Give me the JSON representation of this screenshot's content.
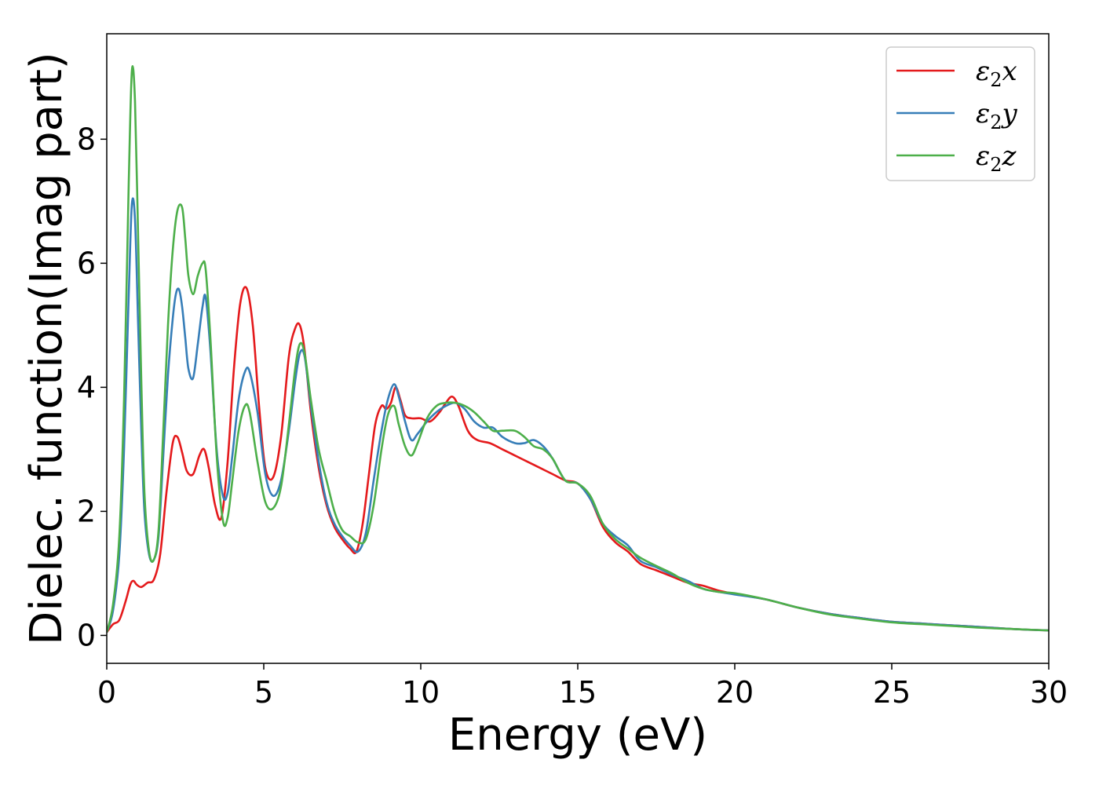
{
  "chart_data": {
    "type": "line",
    "title": "",
    "xlabel": "Energy (eV)",
    "ylabel": "Dielec. function(Imag part)",
    "xlim": [
      0,
      30
    ],
    "ylim": [
      -0.45,
      9.7
    ],
    "xticks": [
      0,
      5,
      10,
      15,
      20,
      25,
      30
    ],
    "yticks": [
      0,
      2,
      4,
      6,
      8
    ],
    "grid": false,
    "legend_position": "top-right",
    "series": [
      {
        "name": "ε2x",
        "legend_base": "ε",
        "legend_sub": "2",
        "legend_tail": "x",
        "color": "#e41a1c",
        "x": [
          0,
          0.2,
          0.4,
          0.6,
          0.75,
          0.85,
          0.95,
          1.1,
          1.3,
          1.5,
          1.7,
          1.9,
          2.1,
          2.25,
          2.4,
          2.55,
          2.75,
          2.95,
          3.1,
          3.25,
          3.45,
          3.65,
          3.85,
          4.05,
          4.25,
          4.45,
          4.65,
          4.85,
          5.05,
          5.3,
          5.55,
          5.8,
          6.0,
          6.15,
          6.3,
          6.5,
          6.75,
          7.0,
          7.25,
          7.5,
          7.75,
          7.95,
          8.15,
          8.35,
          8.55,
          8.75,
          8.9,
          9.05,
          9.2,
          9.35,
          9.5,
          9.7,
          10.0,
          10.3,
          10.6,
          10.8,
          11.0,
          11.2,
          11.5,
          11.8,
          12.2,
          12.6,
          13.0,
          13.4,
          13.8,
          14.2,
          14.6,
          15.0,
          15.4,
          15.8,
          16.2,
          16.6,
          17.0,
          17.5,
          18.0,
          18.5,
          19.0,
          19.5,
          20.0,
          21.0,
          22.0,
          23.0,
          24.0,
          25.0,
          26.0,
          27.0,
          28.0,
          29.0,
          30.0
        ],
        "y": [
          0.05,
          0.18,
          0.25,
          0.55,
          0.82,
          0.88,
          0.82,
          0.78,
          0.85,
          0.9,
          1.3,
          2.3,
          3.1,
          3.2,
          2.95,
          2.65,
          2.6,
          2.9,
          3.0,
          2.7,
          2.1,
          1.9,
          2.8,
          4.3,
          5.35,
          5.6,
          5.0,
          3.7,
          2.7,
          2.55,
          3.2,
          4.5,
          4.95,
          5.0,
          4.6,
          3.6,
          2.7,
          2.1,
          1.75,
          1.55,
          1.4,
          1.35,
          1.8,
          2.6,
          3.4,
          3.7,
          3.65,
          3.75,
          4.0,
          3.8,
          3.55,
          3.5,
          3.5,
          3.45,
          3.6,
          3.75,
          3.85,
          3.7,
          3.3,
          3.15,
          3.1,
          3.0,
          2.9,
          2.8,
          2.7,
          2.6,
          2.5,
          2.45,
          2.2,
          1.75,
          1.5,
          1.35,
          1.15,
          1.05,
          0.95,
          0.85,
          0.8,
          0.72,
          0.67,
          0.58,
          0.45,
          0.35,
          0.28,
          0.22,
          0.19,
          0.16,
          0.13,
          0.1,
          0.08
        ]
      },
      {
        "name": "ε2y",
        "legend_base": "ε",
        "legend_sub": "2",
        "legend_tail": "y",
        "color": "#377eb8",
        "x": [
          0,
          0.2,
          0.4,
          0.55,
          0.7,
          0.8,
          0.9,
          1.0,
          1.1,
          1.2,
          1.35,
          1.5,
          1.65,
          1.8,
          1.95,
          2.1,
          2.2,
          2.3,
          2.4,
          2.5,
          2.6,
          2.75,
          2.9,
          3.05,
          3.15,
          3.3,
          3.5,
          3.7,
          3.85,
          4.0,
          4.2,
          4.4,
          4.55,
          4.8,
          5.05,
          5.3,
          5.55,
          5.8,
          6.0,
          6.15,
          6.3,
          6.5,
          6.75,
          7.0,
          7.25,
          7.5,
          7.75,
          8.0,
          8.25,
          8.5,
          8.75,
          8.95,
          9.15,
          9.3,
          9.5,
          9.7,
          9.9,
          10.2,
          10.5,
          10.8,
          11.1,
          11.4,
          11.7,
          12.0,
          12.3,
          12.6,
          13.0,
          13.3,
          13.6,
          13.9,
          14.2,
          14.6,
          15.0,
          15.4,
          15.8,
          16.2,
          16.6,
          17.0,
          17.5,
          18.0,
          18.5,
          19.0,
          19.5,
          20.0,
          21.0,
          22.0,
          23.0,
          24.0,
          25.0,
          26.0,
          27.0,
          28.0,
          29.0,
          30.0
        ],
        "y": [
          0.05,
          0.4,
          1.3,
          3.0,
          5.5,
          6.95,
          6.7,
          5.0,
          3.3,
          2.0,
          1.3,
          1.22,
          1.6,
          2.9,
          4.2,
          5.1,
          5.5,
          5.58,
          5.3,
          4.8,
          4.3,
          4.15,
          4.7,
          5.3,
          5.45,
          4.6,
          3.0,
          2.25,
          2.3,
          2.9,
          3.8,
          4.25,
          4.25,
          3.6,
          2.6,
          2.25,
          2.5,
          3.3,
          4.1,
          4.55,
          4.5,
          3.7,
          2.8,
          2.15,
          1.8,
          1.6,
          1.45,
          1.35,
          1.65,
          2.5,
          3.3,
          3.8,
          4.05,
          3.85,
          3.45,
          3.15,
          3.25,
          3.45,
          3.6,
          3.7,
          3.75,
          3.65,
          3.45,
          3.35,
          3.35,
          3.2,
          3.1,
          3.1,
          3.15,
          3.05,
          2.85,
          2.5,
          2.45,
          2.2,
          1.8,
          1.6,
          1.45,
          1.2,
          1.1,
          0.98,
          0.88,
          0.75,
          0.7,
          0.66,
          0.58,
          0.45,
          0.35,
          0.28,
          0.22,
          0.19,
          0.16,
          0.13,
          0.1,
          0.08
        ]
      },
      {
        "name": "ε2z",
        "legend_base": "ε",
        "legend_sub": "2",
        "legend_tail": "z",
        "color": "#4daf4a",
        "x": [
          0,
          0.2,
          0.4,
          0.55,
          0.7,
          0.8,
          0.9,
          1.0,
          1.1,
          1.2,
          1.35,
          1.5,
          1.65,
          1.8,
          1.95,
          2.1,
          2.25,
          2.4,
          2.5,
          2.6,
          2.75,
          2.9,
          3.05,
          3.15,
          3.3,
          3.5,
          3.7,
          3.85,
          4.0,
          4.2,
          4.4,
          4.55,
          4.8,
          5.05,
          5.3,
          5.55,
          5.8,
          6.0,
          6.15,
          6.3,
          6.5,
          6.75,
          7.0,
          7.25,
          7.5,
          7.75,
          8.0,
          8.25,
          8.5,
          8.75,
          8.95,
          9.15,
          9.3,
          9.5,
          9.7,
          9.9,
          10.2,
          10.5,
          10.8,
          11.1,
          11.4,
          11.7,
          12.0,
          12.3,
          12.6,
          13.0,
          13.3,
          13.6,
          13.9,
          14.2,
          14.6,
          15.0,
          15.4,
          15.8,
          16.2,
          16.6,
          17.0,
          17.5,
          18.0,
          18.5,
          19.0,
          19.5,
          20.0,
          21.0,
          22.0,
          23.0,
          24.0,
          25.0,
          26.0,
          27.0,
          28.0,
          29.0,
          30.0
        ],
        "y": [
          0.05,
          0.5,
          1.6,
          3.8,
          7.3,
          9.1,
          8.6,
          6.4,
          4.1,
          2.3,
          1.35,
          1.22,
          1.7,
          3.3,
          5.0,
          6.2,
          6.85,
          6.9,
          6.4,
          5.8,
          5.5,
          5.8,
          6.0,
          5.9,
          4.8,
          2.9,
          1.85,
          1.9,
          2.5,
          3.3,
          3.7,
          3.6,
          2.8,
          2.15,
          2.05,
          2.4,
          3.4,
          4.3,
          4.7,
          4.55,
          3.8,
          3.0,
          2.5,
          2.0,
          1.7,
          1.6,
          1.5,
          1.55,
          2.1,
          3.0,
          3.55,
          3.7,
          3.4,
          3.05,
          2.9,
          3.1,
          3.5,
          3.7,
          3.75,
          3.75,
          3.7,
          3.6,
          3.45,
          3.3,
          3.3,
          3.3,
          3.2,
          3.05,
          3.0,
          2.85,
          2.5,
          2.45,
          2.25,
          1.8,
          1.55,
          1.4,
          1.25,
          1.12,
          1.0,
          0.85,
          0.75,
          0.7,
          0.68,
          0.58,
          0.45,
          0.34,
          0.27,
          0.21,
          0.18,
          0.15,
          0.12,
          0.1,
          0.08
        ]
      }
    ]
  }
}
